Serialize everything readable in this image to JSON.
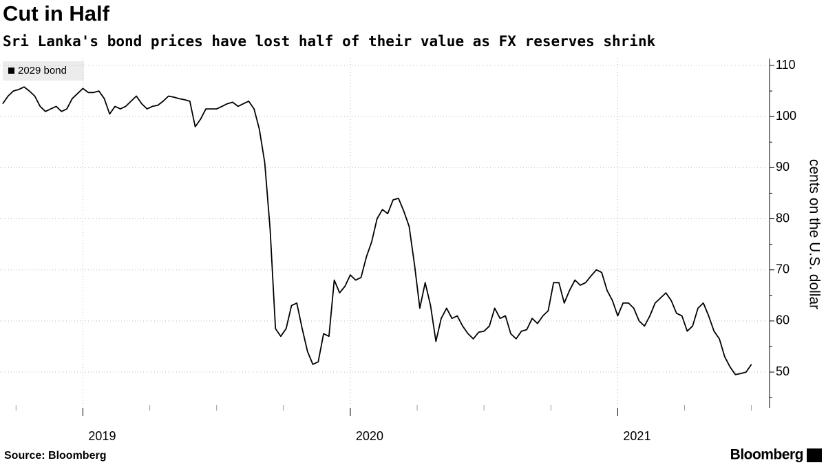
{
  "chart_data": {
    "type": "line",
    "title": "Cut in Half",
    "subtitle": "Sri Lanka's bond prices have lost half of their value as FX reserves shrink",
    "y_label": "cents on the U.S. dollar",
    "source": "Source: Bloomberg",
    "brand": "Bloomberg",
    "legend_position": "top-left",
    "grid": true,
    "xlim": [
      2018.69,
      2021.56
    ],
    "xticks": [
      2019,
      2020,
      2021
    ],
    "xticks_minor": [
      2018.75,
      2019.25,
      2019.5,
      2019.75,
      2020.25,
      2020.5,
      2020.75,
      2021.25,
      2021.5
    ],
    "ylim": [
      43,
      111.35
    ],
    "yticks": [
      50,
      60,
      70,
      80,
      90,
      100,
      110
    ],
    "yticks_minor": [
      45,
      55,
      65,
      75,
      85,
      95,
      105
    ],
    "x": [
      2018.7,
      2018.72,
      2018.74,
      2018.76,
      2018.78,
      2018.8,
      2018.82,
      2018.84,
      2018.86,
      2018.88,
      2018.9,
      2018.92,
      2018.94,
      2018.96,
      2018.98,
      2019.0,
      2019.02,
      2019.04,
      2019.06,
      2019.08,
      2019.1,
      2019.12,
      2019.14,
      2019.16,
      2019.18,
      2019.2,
      2019.22,
      2019.24,
      2019.26,
      2019.28,
      2019.3,
      2019.32,
      2019.34,
      2019.36,
      2019.38,
      2019.4,
      2019.42,
      2019.44,
      2019.46,
      2019.48,
      2019.5,
      2019.52,
      2019.54,
      2019.56,
      2019.58,
      2019.6,
      2019.62,
      2019.64,
      2019.66,
      2019.68,
      2019.7,
      2019.72,
      2019.74,
      2019.76,
      2019.78,
      2019.8,
      2019.82,
      2019.84,
      2019.86,
      2019.88,
      2019.9,
      2019.92,
      2019.94,
      2019.96,
      2019.98,
      2020.0,
      2020.02,
      2020.04,
      2020.06,
      2020.08,
      2020.1,
      2020.12,
      2020.14,
      2020.16,
      2020.18,
      2020.2,
      2020.22,
      2020.24,
      2020.26,
      2020.28,
      2020.3,
      2020.32,
      2020.34,
      2020.36,
      2020.38,
      2020.4,
      2020.42,
      2020.44,
      2020.46,
      2020.48,
      2020.5,
      2020.52,
      2020.54,
      2020.56,
      2020.58,
      2020.6,
      2020.62,
      2020.64,
      2020.66,
      2020.68,
      2020.7,
      2020.72,
      2020.74,
      2020.76,
      2020.78,
      2020.8,
      2020.82,
      2020.84,
      2020.86,
      2020.88,
      2020.9,
      2020.92,
      2020.94,
      2020.96,
      2020.98,
      2021.0,
      2021.02,
      2021.04,
      2021.06,
      2021.08,
      2021.1,
      2021.12,
      2021.14,
      2021.16,
      2021.18,
      2021.2,
      2021.22,
      2021.24,
      2021.26,
      2021.28,
      2021.3,
      2021.32,
      2021.34,
      2021.36,
      2021.38,
      2021.4,
      2021.42,
      2021.44,
      2021.46,
      2021.48,
      2021.5
    ],
    "series": [
      {
        "name": "2029 bond",
        "color": "#000000",
        "values": [
          102.5,
          104,
          105,
          105.3,
          105.8,
          105,
          104,
          102,
          101,
          101.5,
          102,
          101,
          101.5,
          103.5,
          104.5,
          105.5,
          104.7,
          104.7,
          105,
          103.5,
          100.5,
          102,
          101.5,
          102,
          103,
          104,
          102.5,
          101.5,
          102,
          102.2,
          103,
          104,
          103.8,
          103.5,
          103.3,
          103,
          98,
          99.5,
          101.5,
          101.5,
          101.5,
          102,
          102.5,
          102.8,
          102,
          102.5,
          103,
          101.5,
          97.5,
          91,
          78,
          58.5,
          57,
          58.5,
          63,
          63.5,
          58.5,
          54,
          51.5,
          52,
          57.5,
          57,
          68,
          65.5,
          66.8,
          69,
          68,
          68.5,
          72.5,
          75.5,
          80,
          81.8,
          81,
          83.7,
          84,
          81.5,
          78.5,
          71,
          62.5,
          67.5,
          63,
          56,
          60.5,
          62.5,
          60.5,
          61,
          59,
          57.5,
          56.5,
          57.8,
          58,
          59,
          62.5,
          60.5,
          61,
          57.5,
          56.5,
          58,
          58.3,
          60.5,
          59.5,
          61,
          62,
          67.5,
          67.5,
          63.5,
          66,
          68,
          67,
          67.5,
          68.8,
          70,
          69.5,
          66,
          64,
          61,
          63.5,
          63.5,
          62.5,
          60,
          59,
          61,
          63.5,
          64.5,
          65.5,
          64,
          61.5,
          61,
          58,
          59,
          62.5,
          63.5,
          61,
          58,
          56.5,
          53,
          51,
          49.5,
          49.7,
          50,
          51.5
        ]
      }
    ]
  }
}
